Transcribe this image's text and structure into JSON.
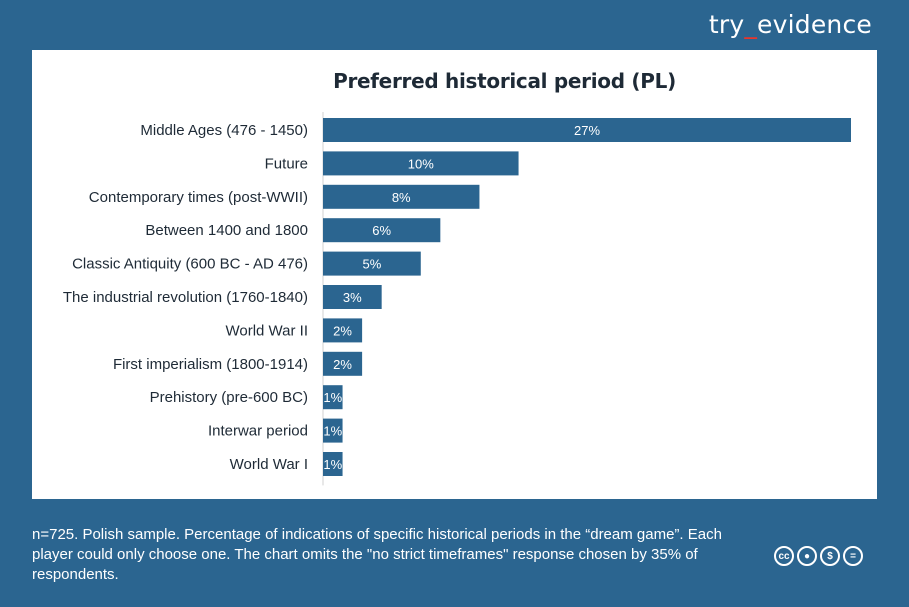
{
  "brand": {
    "left": "try",
    "sep": "_",
    "right": "evidence"
  },
  "chart_data": {
    "type": "bar",
    "orientation": "horizontal",
    "title": "Preferred historical period (PL)",
    "categories": [
      "Middle Ages (476 - 1450)",
      "Future",
      "Contemporary times (post-WWII)",
      "Between 1400 and 1800",
      "Classic Antiquity (600 BC - AD 476)",
      "The industrial revolution (1760-1840)",
      "World War II",
      "First imperialism (1800-1914)",
      "Prehistory (pre-600 BC)",
      "Interwar period",
      "World War I"
    ],
    "values": [
      27,
      10,
      8,
      6,
      5,
      3,
      2,
      2,
      1,
      1,
      1
    ],
    "data_labels": [
      "27%",
      "10%",
      "8%",
      "6%",
      "5%",
      "3%",
      "2%",
      "2%",
      "1%",
      "1%",
      "1%"
    ],
    "bar_color": "#2b6590",
    "label_color": "#ffffff",
    "xlim": [
      0,
      27
    ],
    "grid": false
  },
  "footer": {
    "note": "n=725. Polish sample. Percentage of indications of specific historical periods in the “dream game”. Each player could only choose one. The chart omits the \"no strict timeframes\" response chosen by 35% of respondents."
  },
  "license_icons": [
    "cc-icon",
    "by-icon",
    "nc-icon",
    "nd-icon"
  ]
}
